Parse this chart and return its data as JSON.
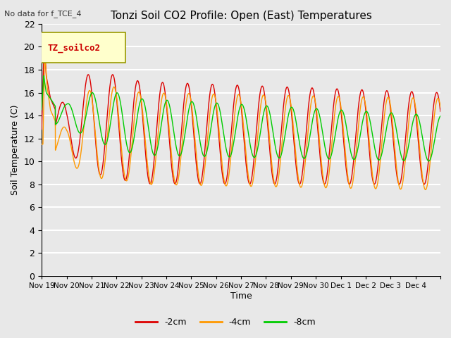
{
  "title": "Tonzi Soil CO2 Profile: Open (East) Temperatures",
  "subtitle": "No data for f_TCE_4",
  "ylabel": "Soil Temperature (C)",
  "xlabel": "Time",
  "legend_label": "TZ_soilco2",
  "series_labels": [
    "-2cm",
    "-4cm",
    "-8cm"
  ],
  "series_colors": [
    "#dd0000",
    "#ff9900",
    "#00cc00"
  ],
  "ylim": [
    0,
    22
  ],
  "yticks": [
    0,
    2,
    4,
    6,
    8,
    10,
    12,
    14,
    16,
    18,
    20,
    22
  ],
  "background_color": "#e8e8e8",
  "plot_bg_color": "#e8e8e8",
  "grid_color": "#ffffff",
  "tick_positions": [
    0,
    1,
    2,
    3,
    4,
    5,
    6,
    7,
    8,
    9,
    10,
    11,
    12,
    13,
    14,
    15,
    16
  ],
  "tick_labels": [
    "Nov 19",
    "Nov 20",
    "Nov 21",
    "Nov 22",
    "Nov 23",
    "Nov 24",
    "Nov 25",
    "Nov 26",
    "Nov 27",
    "Nov 28",
    "Nov 29",
    "Nov 30",
    "Dec 1",
    "Dec 2",
    "Dec 3",
    "Dec 4",
    ""
  ]
}
